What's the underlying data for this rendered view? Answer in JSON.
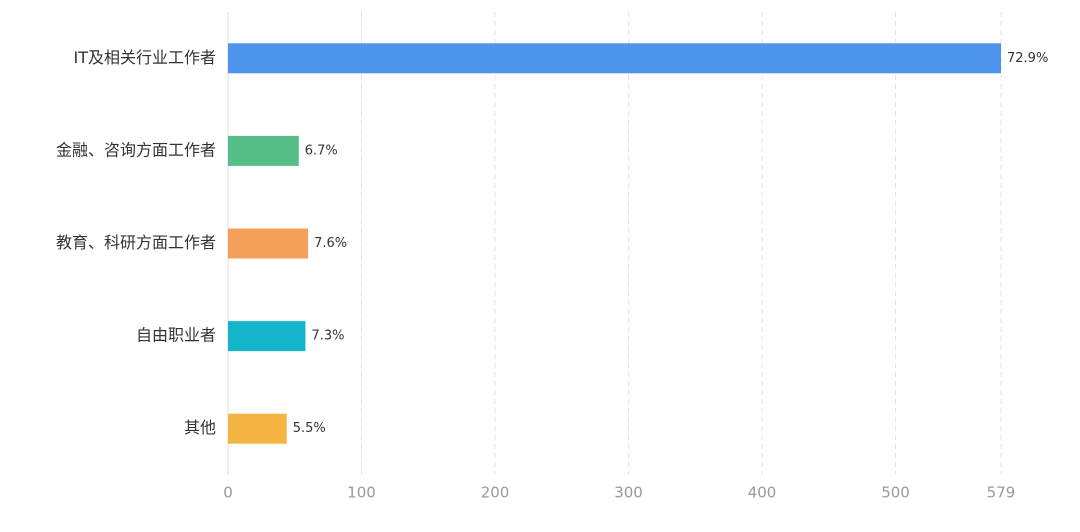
{
  "chart_data": {
    "type": "hbar",
    "categories": [
      "IT及相关行业工作者",
      "金融、咨询方面工作者",
      "教育、科研方面工作者",
      "自由职业者",
      "其他"
    ],
    "values": [
      579,
      53,
      60,
      58,
      44
    ],
    "value_labels": [
      "72.9%",
      "6.7%",
      "7.6%",
      "7.3%",
      "5.5%"
    ],
    "colors": [
      "#4e93ee",
      "#56bf87",
      "#f5a05a",
      "#12b5cc",
      "#f5b545"
    ],
    "xlim": [
      0,
      579
    ],
    "xticks": [
      0,
      100,
      200,
      300,
      400,
      500,
      579
    ],
    "grid": true
  }
}
